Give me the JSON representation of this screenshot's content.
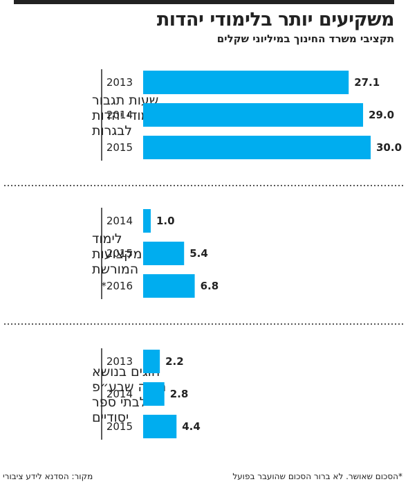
{
  "header": {
    "title": "משקיעים יותר בלימודי יהדות",
    "subtitle": "תקציבי משרד החינוך במיליוני שקלים"
  },
  "footer": {
    "source": "מקור: הסדנא לידע ציבורי",
    "note": "*הסכום שאושר. לא ברור הסכום שהועבר בפועל"
  },
  "colors": {
    "bar": "#00adef",
    "axis": "#222222",
    "separator": "#555555"
  },
  "chart_data": {
    "type": "bar",
    "orientation": "horizontal",
    "xlim": [
      0,
      30
    ],
    "grid": false,
    "groups": [
      {
        "label_lines": [
          "שעות תגבור",
          "ללימודי יהדות",
          "לבגרות"
        ],
        "categories": [
          "2013",
          "2014",
          "2015"
        ],
        "values": [
          27.1,
          29.0,
          30.0
        ],
        "value_labels": [
          "27.1",
          "29.0",
          "30.0"
        ]
      },
      {
        "label_lines": [
          "לימוד",
          "מקצועות",
          "המורשת"
        ],
        "categories": [
          "2014",
          "2015",
          "*2016"
        ],
        "values": [
          1.0,
          5.4,
          6.8
        ],
        "value_labels": [
          "1.0",
          "5.4",
          "6.8"
        ]
      },
      {
        "label_lines": [
          "חוגים בנושא",
          "תורה שבע״פ",
          "לבתי ספר",
          "יסודיים"
        ],
        "categories": [
          "2013",
          "2014",
          "2015"
        ],
        "values": [
          2.2,
          2.8,
          4.4
        ],
        "value_labels": [
          "2.2",
          "2.8",
          "4.4"
        ]
      }
    ]
  }
}
